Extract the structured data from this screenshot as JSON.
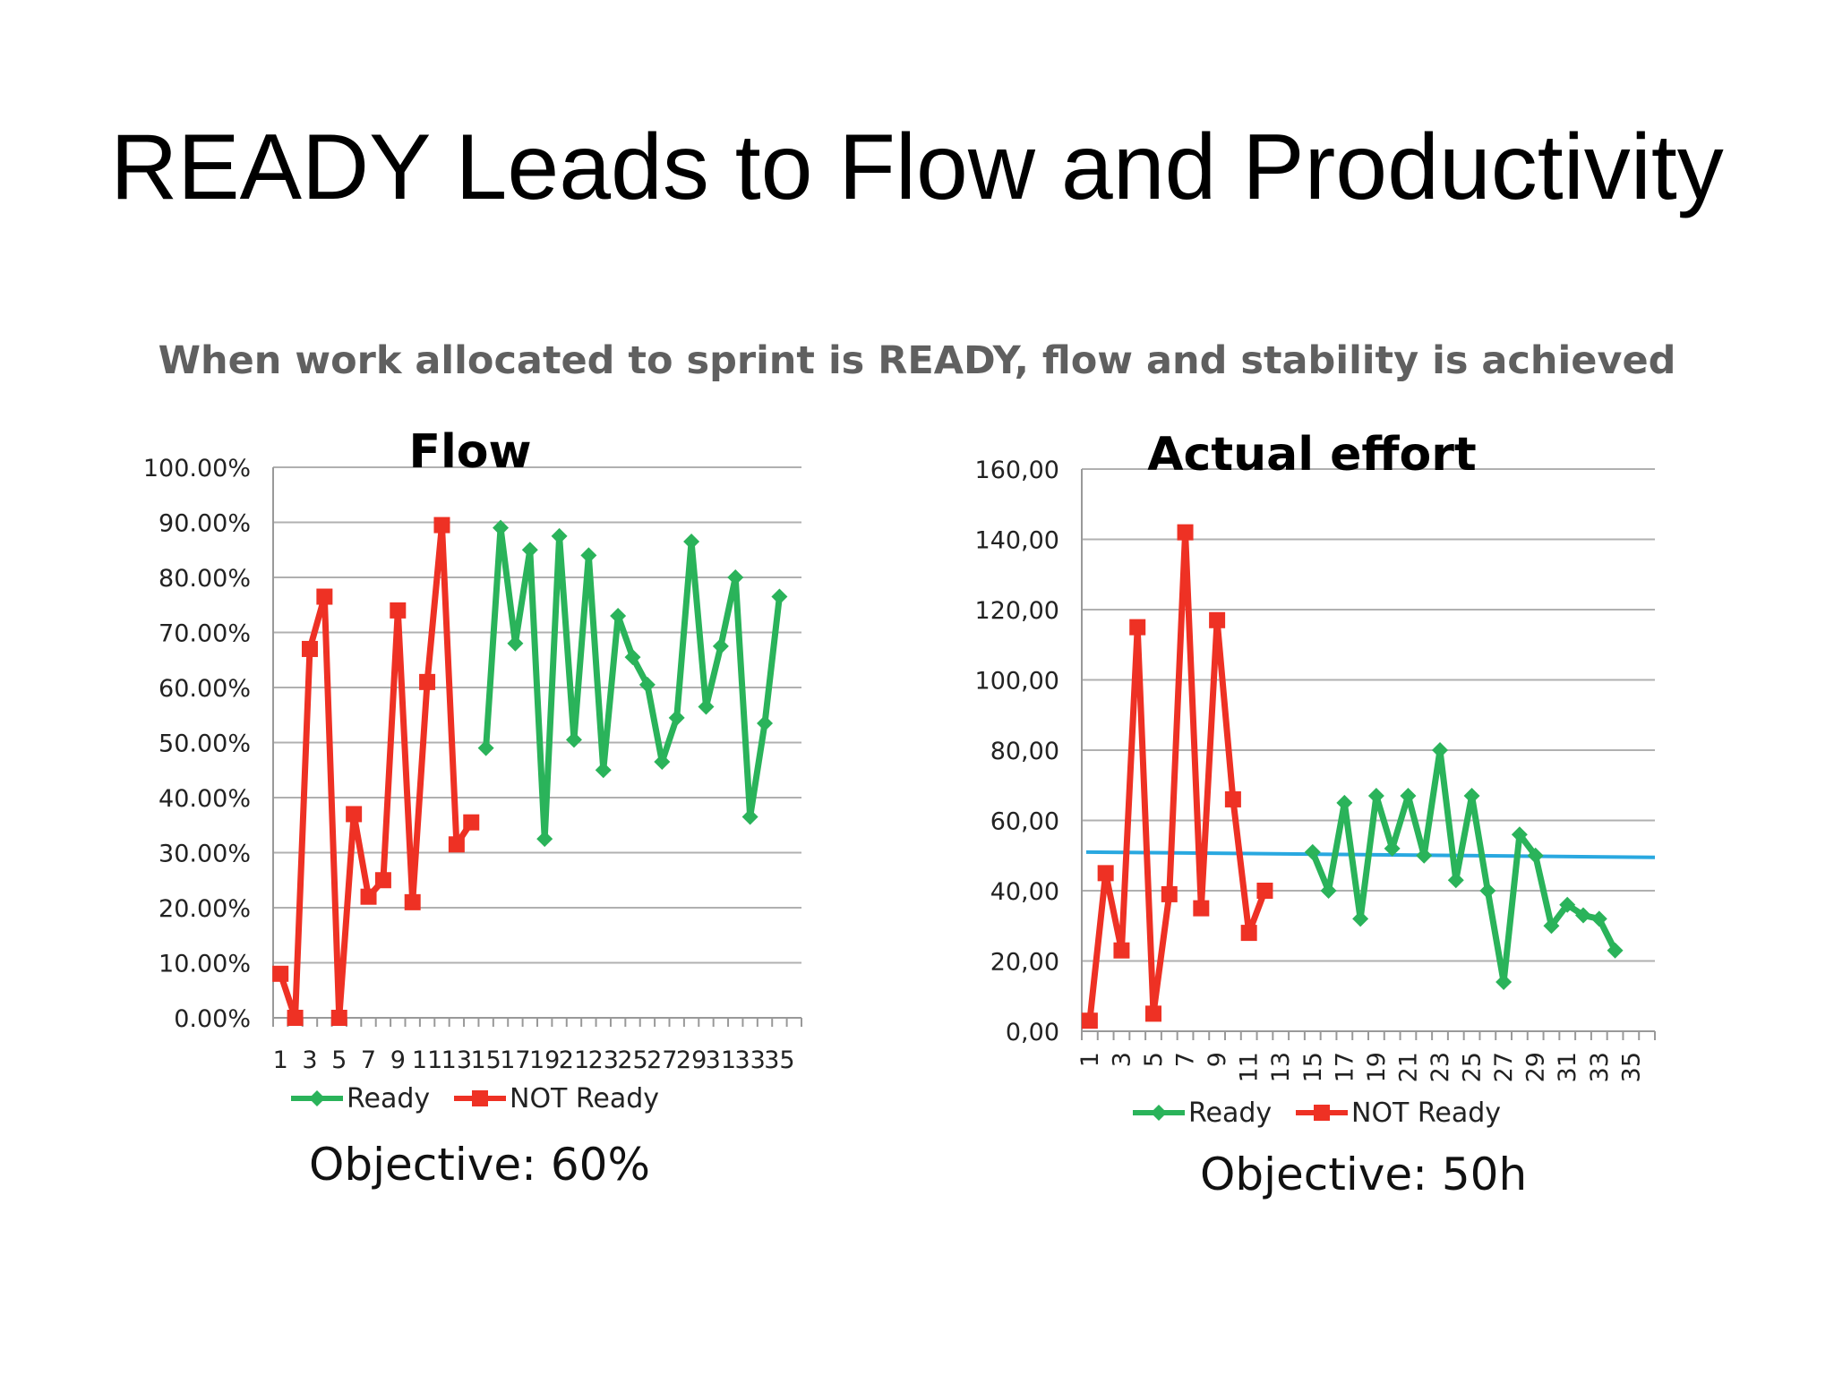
{
  "slide": {
    "title": "READY Leads to Flow and Productivity",
    "subtitle": "When work allocated to sprint is READY, flow and stability is achieved"
  },
  "colors": {
    "ready": "#2ab35a",
    "not_ready": "#ee3124",
    "objective_line": "#29a8e0",
    "grid": "#b0b0b0",
    "axis": "#999999",
    "title": "#000000",
    "subtitle": "#606060"
  },
  "chart_data": [
    {
      "type": "line",
      "title": "Flow",
      "ylim": [
        0,
        1
      ],
      "y_ticks": [
        "0.00%",
        "10.00%",
        "20.00%",
        "30.00%",
        "40.00%",
        "50.00%",
        "60.00%",
        "70.00%",
        "80.00%",
        "90.00%",
        "100.00%"
      ],
      "x_ticks": [
        "1",
        "3",
        "5",
        "7",
        "9",
        "11",
        "13",
        "15",
        "17",
        "19",
        "21",
        "23",
        "25",
        "27",
        "29",
        "31",
        "33",
        "35"
      ],
      "grid": true,
      "legend": "bottom",
      "series": [
        {
          "name": "NOT Ready",
          "x": [
            1,
            2,
            3,
            4,
            5,
            6,
            7,
            8,
            9,
            10,
            11,
            12,
            13,
            14
          ],
          "values": [
            0.08,
            0.0,
            0.67,
            0.765,
            0.0,
            0.37,
            0.22,
            0.25,
            0.74,
            0.21,
            0.61,
            0.895,
            0.315,
            0.355
          ]
        },
        {
          "name": "Ready",
          "x": [
            15,
            16,
            17,
            18,
            19,
            20,
            21,
            22,
            23,
            24,
            25,
            26,
            27,
            28,
            29,
            30,
            31,
            32,
            33,
            34,
            35,
            36
          ],
          "values": [
            0.49,
            0.89,
            0.68,
            0.85,
            0.325,
            0.875,
            0.505,
            0.84,
            0.45,
            0.73,
            0.655,
            0.605,
            0.465,
            0.545,
            0.865,
            0.565,
            0.675,
            0.8,
            0.365,
            0.535,
            0.765,
            null
          ]
        }
      ],
      "objective_label": "Objective: 60%"
    },
    {
      "type": "line",
      "title": "Actual effort",
      "ylim": [
        0,
        160
      ],
      "y_ticks": [
        "0,00",
        "20,00",
        "40,00",
        "60,00",
        "80,00",
        "100,00",
        "120,00",
        "140,00",
        "160,00"
      ],
      "x_ticks": [
        "1",
        "3",
        "5",
        "7",
        "9",
        "11",
        "13",
        "15",
        "17",
        "19",
        "21",
        "23",
        "25",
        "27",
        "29",
        "31",
        "33",
        "35"
      ],
      "grid": true,
      "legend": "bottom",
      "series": [
        {
          "name": "NOT Ready",
          "x": [
            1,
            2,
            3,
            4,
            5,
            6,
            7,
            8,
            9,
            10,
            11,
            12,
            13,
            14
          ],
          "values": [
            3,
            45,
            23,
            115,
            5,
            39,
            142,
            35,
            117,
            66,
            28,
            40,
            null,
            null
          ]
        },
        {
          "name": "Ready",
          "x": [
            15,
            16,
            17,
            18,
            19,
            20,
            21,
            22,
            23,
            24,
            25,
            26,
            27,
            28,
            29,
            30,
            31,
            32,
            33,
            34,
            35,
            36
          ],
          "values": [
            51,
            40,
            65,
            32,
            67,
            52,
            67,
            50,
            80,
            43,
            67,
            40,
            14,
            56,
            50,
            30,
            36,
            33,
            32,
            23,
            null,
            null
          ]
        }
      ],
      "objective": {
        "from": 51,
        "to": 49.5
      },
      "objective_label": "Objective: 50h"
    }
  ]
}
